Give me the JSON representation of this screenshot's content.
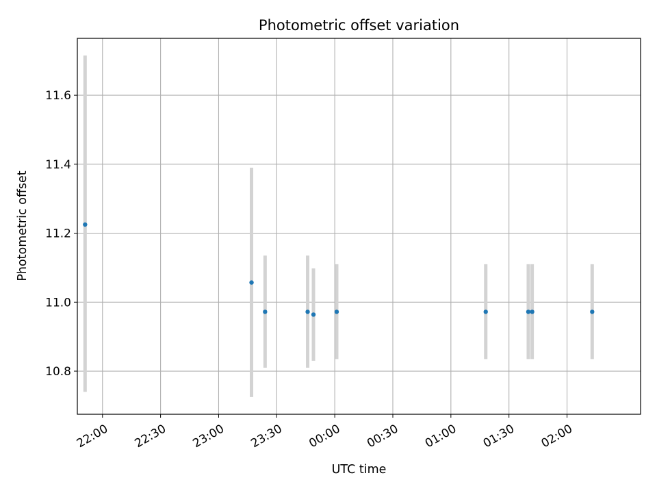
{
  "chart_data": {
    "type": "scatter",
    "title": "Photometric offset variation",
    "xlabel": "UTC time",
    "ylabel": "Photometric offset",
    "grid": true,
    "x_ticks": [
      {
        "label": "22:00",
        "min": 1320
      },
      {
        "label": "22:30",
        "min": 1350
      },
      {
        "label": "23:00",
        "min": 1380
      },
      {
        "label": "23:30",
        "min": 1410
      },
      {
        "label": "00:00",
        "min": 1440
      },
      {
        "label": "00:30",
        "min": 1470
      },
      {
        "label": "01:00",
        "min": 1500
      },
      {
        "label": "01:30",
        "min": 1530
      },
      {
        "label": "02:00",
        "min": 1560
      }
    ],
    "y_ticks": [
      "10.8",
      "11.0",
      "11.2",
      "11.4",
      "11.6"
    ],
    "xlim": [
      "21:47",
      "02:38"
    ],
    "ylim": [
      10.675,
      11.765
    ],
    "series": [
      {
        "points": [
          {
            "time": "21:51",
            "y": 11.225,
            "err_low": 10.74,
            "err_high": 11.715
          },
          {
            "time": "23:17",
            "y": 11.057,
            "err_low": 10.725,
            "err_high": 11.39
          },
          {
            "time": "23:24",
            "y": 10.972,
            "err_low": 10.81,
            "err_high": 11.135
          },
          {
            "time": "23:46",
            "y": 10.972,
            "err_low": 10.81,
            "err_high": 11.135
          },
          {
            "time": "23:49",
            "y": 10.964,
            "err_low": 10.83,
            "err_high": 11.098
          },
          {
            "time": "00:01",
            "y": 10.972,
            "err_low": 10.835,
            "err_high": 11.11
          },
          {
            "time": "01:18",
            "y": 10.972,
            "err_low": 10.835,
            "err_high": 11.11
          },
          {
            "time": "01:40",
            "y": 10.972,
            "err_low": 10.835,
            "err_high": 11.11
          },
          {
            "time": "01:42",
            "y": 10.972,
            "err_low": 10.835,
            "err_high": 11.11
          },
          {
            "time": "02:13",
            "y": 10.972,
            "err_low": 10.835,
            "err_high": 11.11
          }
        ]
      }
    ],
    "colors": {
      "point": "#1f77b4",
      "errorbar": "#d3d3d3",
      "grid": "#b0b0b0",
      "axes": "#000000"
    }
  }
}
